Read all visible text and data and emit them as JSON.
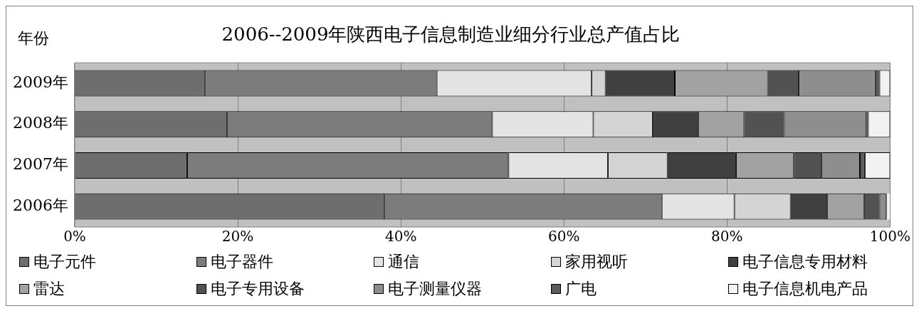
{
  "chart_data": {
    "type": "bar",
    "orientation": "horizontal",
    "stacked": true,
    "title": "2006--2009年陕西电子信息制造业细分行业总产值占比",
    "ylabel": "年份",
    "categories": [
      "2009年",
      "2008年",
      "2007年",
      "2006年"
    ],
    "series": [
      {
        "name": "电子元件",
        "color": "#6e6e6e",
        "values": [
          16.0,
          18.7,
          13.8,
          38.0
        ]
      },
      {
        "name": "电子器件",
        "color": "#7c7c7c",
        "values": [
          28.4,
          32.5,
          39.4,
          34.0
        ]
      },
      {
        "name": "通信",
        "color": "#e4e4e4",
        "values": [
          19.0,
          12.4,
          12.2,
          8.9
        ]
      },
      {
        "name": "家用视听",
        "color": "#d4d4d4",
        "values": [
          1.7,
          7.3,
          7.3,
          6.9
        ]
      },
      {
        "name": "电子信息专用材料",
        "color": "#404040",
        "values": [
          8.5,
          5.6,
          8.4,
          4.5
        ]
      },
      {
        "name": "雷达",
        "color": "#a2a2a2",
        "values": [
          11.4,
          5.6,
          7.1,
          4.5
        ]
      },
      {
        "name": "电子专用设备",
        "color": "#525252",
        "values": [
          3.8,
          4.9,
          3.4,
          1.9
        ]
      },
      {
        "name": "电子测量仪器",
        "color": "#8e8e8e",
        "values": [
          9.4,
          10.1,
          4.7,
          0.8
        ]
      },
      {
        "name": "广电",
        "color": "#5c5c5c",
        "values": [
          0.5,
          0.2,
          0.6,
          0.1
        ]
      },
      {
        "name": "电子信息机电产品",
        "color": "#f2f2f2",
        "values": [
          1.3,
          2.7,
          3.1,
          0.4
        ]
      }
    ],
    "xlim": [
      0,
      100
    ],
    "xticks": [
      {
        "value": 0,
        "label": "0%"
      },
      {
        "value": 20,
        "label": "20%"
      },
      {
        "value": 40,
        "label": "40%"
      },
      {
        "value": 60,
        "label": "60%"
      },
      {
        "value": 80,
        "label": "80%"
      },
      {
        "value": 100,
        "label": "100%"
      }
    ],
    "grid": "x",
    "legend": "bottom"
  }
}
